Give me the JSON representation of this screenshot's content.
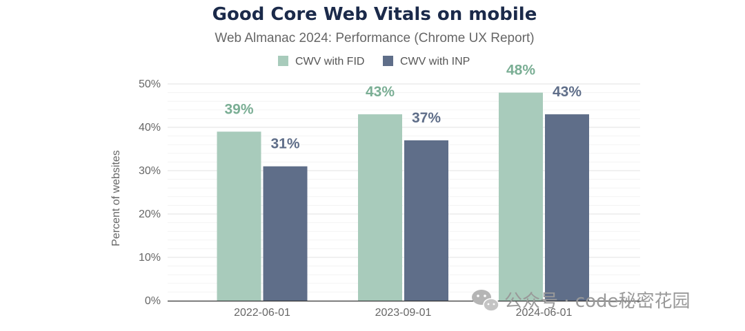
{
  "chart_data": {
    "type": "bar",
    "title": "Good Core Web Vitals on mobile",
    "subtitle": "Web Almanac 2024: Performance (Chrome UX Report)",
    "ylabel": "Percent of websites",
    "xlabel": "",
    "categories": [
      "2022-06-01",
      "2023-09-01",
      "2024-06-01"
    ],
    "series": [
      {
        "name": "CWV with FID",
        "values": [
          39,
          43,
          48
        ],
        "labels": [
          "39%",
          "43%",
          "48%"
        ],
        "color": "#a8cbbb",
        "label_color": "#7aae94"
      },
      {
        "name": "CWV with INP",
        "values": [
          31,
          37,
          43
        ],
        "labels": [
          "31%",
          "37%",
          "43%"
        ],
        "color": "#5f6e89",
        "label_color": "#5f6e89"
      }
    ],
    "ylim": [
      0,
      50
    ],
    "yticks": [
      0,
      10,
      20,
      30,
      40,
      50
    ],
    "ytick_labels": [
      "0%",
      "10%",
      "20%",
      "30%",
      "40%",
      "50%"
    ],
    "grid": true,
    "legend_position": "top-center"
  },
  "watermark": {
    "text": "公众号 · code秘密花园",
    "icon": "wechat-icon"
  }
}
